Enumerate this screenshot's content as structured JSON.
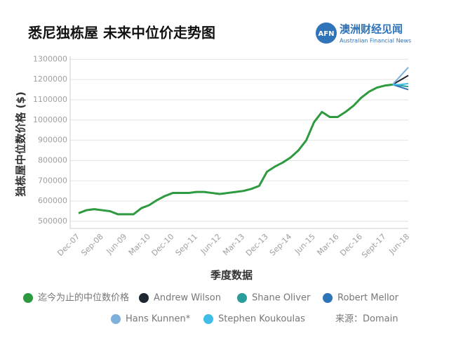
{
  "branding": {
    "mark": "AFN",
    "name": "澳洲财经见闻",
    "subtitle": "Australian Financial News"
  },
  "chart_data": {
    "type": "line",
    "title": "悉尼独栋屋 未来中位价走势图",
    "y_label": "独栋屋中位数价格 ($)",
    "x_label": "季度数据",
    "source": "来源：Domain",
    "categories": [
      "Dec-07",
      null,
      null,
      "Sep-08",
      null,
      null,
      "Jun-09",
      null,
      null,
      "Mar-10",
      null,
      null,
      "Dec-10",
      null,
      null,
      "Sep-11",
      null,
      null,
      "Jun-12",
      null,
      null,
      "Mar-13",
      null,
      null,
      "Dec-13",
      null,
      null,
      "Sep-14",
      null,
      null,
      "Jun-15",
      null,
      null,
      "Mar-16",
      null,
      null,
      "Dec-16",
      null,
      null,
      "Sept-17",
      null,
      null,
      "Jun-18"
    ],
    "ylim": [
      465000,
      1315000
    ],
    "yticks": [
      500000,
      600000,
      700000,
      800000,
      900000,
      1000000,
      1100000,
      1200000,
      1300000
    ],
    "grid": true,
    "series": [
      {
        "name": "迄今为止的中位数价格",
        "color": "#2e9a3f",
        "values": [
          540000,
          555000,
          560000,
          555000,
          550000,
          535000,
          535000,
          535000,
          565000,
          580000,
          605000,
          625000,
          640000,
          640000,
          640000,
          645000,
          645000,
          640000,
          635000,
          640000,
          645000,
          650000,
          660000,
          675000,
          745000,
          770000,
          790000,
          815000,
          850000,
          900000,
          990000,
          1040000,
          1015000,
          1015000,
          1040000,
          1070000,
          1110000,
          1140000,
          1160000,
          1170000,
          1175000,
          null,
          null
        ]
      },
      {
        "name": "Andrew Wilson",
        "color": "#1f2733",
        "values": [
          null,
          null,
          null,
          null,
          null,
          null,
          null,
          null,
          null,
          null,
          null,
          null,
          null,
          null,
          null,
          null,
          null,
          null,
          null,
          null,
          null,
          null,
          null,
          null,
          null,
          null,
          null,
          null,
          null,
          null,
          null,
          null,
          null,
          null,
          null,
          null,
          null,
          null,
          null,
          null,
          1175000,
          1197500,
          1220000
        ]
      },
      {
        "name": "Shane Oliver",
        "color": "#2a9d9b",
        "values": [
          null,
          null,
          null,
          null,
          null,
          null,
          null,
          null,
          null,
          null,
          null,
          null,
          null,
          null,
          null,
          null,
          null,
          null,
          null,
          null,
          null,
          null,
          null,
          null,
          null,
          null,
          null,
          null,
          null,
          null,
          null,
          null,
          null,
          null,
          null,
          null,
          null,
          null,
          null,
          null,
          1175000,
          1170000,
          1165000
        ]
      },
      {
        "name": "Robert Mellor",
        "color": "#2f73b8",
        "values": [
          null,
          null,
          null,
          null,
          null,
          null,
          null,
          null,
          null,
          null,
          null,
          null,
          null,
          null,
          null,
          null,
          null,
          null,
          null,
          null,
          null,
          null,
          null,
          null,
          null,
          null,
          null,
          null,
          null,
          null,
          null,
          null,
          null,
          null,
          null,
          null,
          null,
          null,
          null,
          null,
          1175000,
          1162500,
          1150000
        ]
      },
      {
        "name": "Hans Kunnen*",
        "color": "#7fb0dc",
        "values": [
          null,
          null,
          null,
          null,
          null,
          null,
          null,
          null,
          null,
          null,
          null,
          null,
          null,
          null,
          null,
          null,
          null,
          null,
          null,
          null,
          null,
          null,
          null,
          null,
          null,
          null,
          null,
          null,
          null,
          null,
          null,
          null,
          null,
          null,
          null,
          null,
          null,
          null,
          null,
          null,
          1175000,
          1217500,
          1260000
        ]
      },
      {
        "name": "Stephen Koukoulas",
        "color": "#3fbde6",
        "values": [
          null,
          null,
          null,
          null,
          null,
          null,
          null,
          null,
          null,
          null,
          null,
          null,
          null,
          null,
          null,
          null,
          null,
          null,
          null,
          null,
          null,
          null,
          null,
          null,
          null,
          null,
          null,
          null,
          null,
          null,
          null,
          null,
          null,
          null,
          null,
          null,
          null,
          null,
          null,
          null,
          1175000,
          1175000,
          1180000
        ]
      }
    ]
  }
}
